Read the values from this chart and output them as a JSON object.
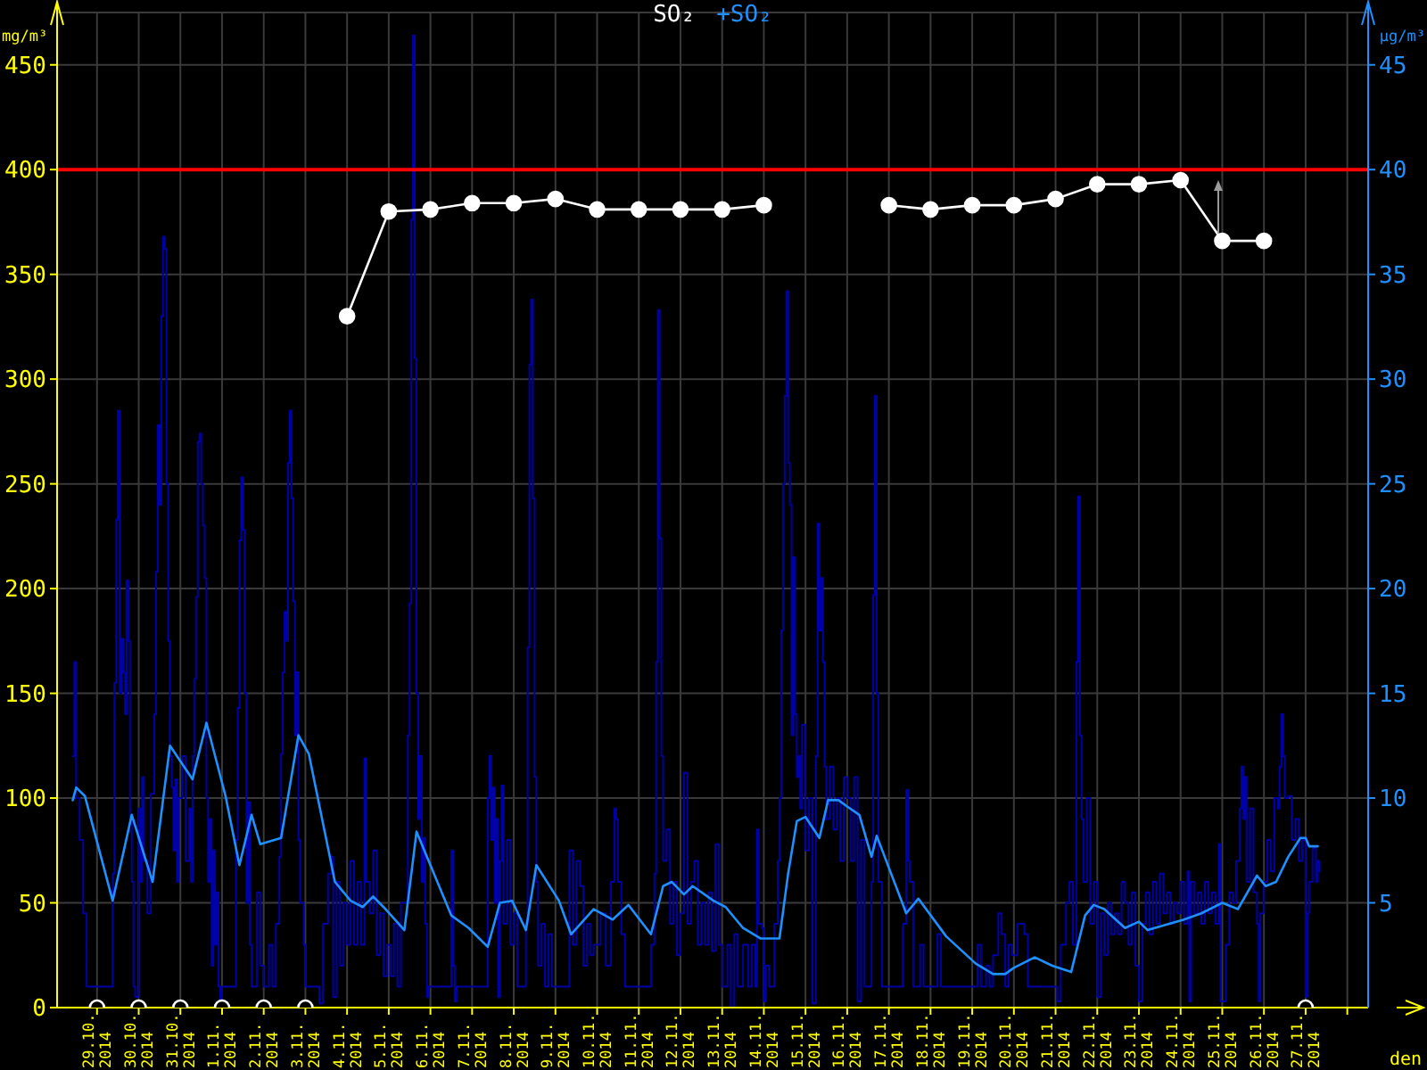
{
  "chart_data": {
    "type": "line",
    "xlabel": "den",
    "ylabel": "mg/m³",
    "y2label": "μg/m³",
    "legend": "top",
    "grid": true,
    "xlim": [
      "2014-10-28T01:00",
      "2014-11-28T12:00"
    ],
    "xticks": [
      {
        "value": "2014-10-29",
        "label": "29.10. 2014"
      },
      {
        "value": "2014-10-30",
        "label": "30.10. 2014"
      },
      {
        "value": "2014-10-31",
        "label": "31.10. 2014"
      },
      {
        "value": "2014-11-01",
        "label": "1.11. 2014"
      },
      {
        "value": "2014-11-02",
        "label": "2.11. 2014"
      },
      {
        "value": "2014-11-03",
        "label": "3.11. 2014"
      },
      {
        "value": "2014-11-04",
        "label": "4.11. 2014"
      },
      {
        "value": "2014-11-05",
        "label": "5.11. 2014"
      },
      {
        "value": "2014-11-06",
        "label": "6.11. 2014"
      },
      {
        "value": "2014-11-07",
        "label": "7.11. 2014"
      },
      {
        "value": "2014-11-08",
        "label": "8.11. 2014"
      },
      {
        "value": "2014-11-09",
        "label": "9.11. 2014"
      },
      {
        "value": "2014-11-10",
        "label": "10.11. 2014"
      },
      {
        "value": "2014-11-11",
        "label": "11.11. 2014"
      },
      {
        "value": "2014-11-12",
        "label": "12.11. 2014"
      },
      {
        "value": "2014-11-13",
        "label": "13.11. 2014"
      },
      {
        "value": "2014-11-14",
        "label": "14.11. 2014"
      },
      {
        "value": "2014-11-15",
        "label": "15.11. 2014"
      },
      {
        "value": "2014-11-16",
        "label": "16.11. 2014"
      },
      {
        "value": "2014-11-17",
        "label": "17.11. 2014"
      },
      {
        "value": "2014-11-18",
        "label": "18.11. 2014"
      },
      {
        "value": "2014-11-19",
        "label": "19.11. 2014"
      },
      {
        "value": "2014-11-20",
        "label": "20.11. 2014"
      },
      {
        "value": "2014-11-21",
        "label": "21.11. 2014"
      },
      {
        "value": "2014-11-22",
        "label": "22.11. 2014"
      },
      {
        "value": "2014-11-23",
        "label": "23.11. 2014"
      },
      {
        "value": "2014-11-24",
        "label": "24.11. 2014"
      },
      {
        "value": "2014-11-25",
        "label": "25.11. 2014"
      },
      {
        "value": "2014-11-26",
        "label": "26.11. 2014"
      },
      {
        "value": "2014-11-27",
        "label": "27.11. 2014"
      },
      {
        "value": "2014-11-28",
        "label": null
      }
    ],
    "ylim": [
      0,
      475
    ],
    "yticks": [
      0,
      50,
      100,
      150,
      200,
      250,
      300,
      350,
      400,
      450
    ],
    "y2lim": [
      0,
      47.5
    ],
    "y2ticks": [
      5,
      10,
      15,
      20,
      25,
      30,
      35,
      40,
      45
    ],
    "ref_lines": [
      {
        "axis": "y",
        "value": 400,
        "color": "#ff0000"
      }
    ],
    "series": [
      {
        "type": "step",
        "color": "#0000a8",
        "x": [
          "2014-10-28T10:00",
          "2014-10-28T11:00",
          "2014-10-28T12:00",
          "2014-10-28T14:00",
          "2014-10-28T16:00",
          "2014-10-28T18:00",
          "2014-10-29T08:00",
          "2014-10-29T09:00",
          "2014-10-29T10:00",
          "2014-10-29T11:00",
          "2014-10-29T12:00",
          "2014-10-29T13:00",
          "2014-10-29T14:00",
          "2014-10-29T15:00",
          "2014-10-29T16:00",
          "2014-10-29T17:00",
          "2014-10-29T18:00",
          "2014-10-29T19:00",
          "2014-10-29T20:00",
          "2014-10-29T21:00",
          "2014-10-29T22:00",
          "2014-10-30T00:00",
          "2014-10-30T01:00",
          "2014-10-30T02:00",
          "2014-10-30T03:00",
          "2014-10-30T05:00",
          "2014-10-30T07:00",
          "2014-10-30T09:00",
          "2014-10-30T10:00",
          "2014-10-30T11:00",
          "2014-10-30T12:00",
          "2014-10-30T13:00",
          "2014-10-30T14:00",
          "2014-10-30T15:00",
          "2014-10-30T16:00",
          "2014-10-30T17:00",
          "2014-10-30T18:00",
          "2014-10-30T19:00",
          "2014-10-30T20:00",
          "2014-10-30T21:00",
          "2014-10-30T22:00",
          "2014-10-30T23:00",
          "2014-10-31T01:00",
          "2014-10-31T03:00",
          "2014-10-31T05:00",
          "2014-10-31T06:00",
          "2014-10-31T07:00",
          "2014-10-31T08:00",
          "2014-10-31T09:00",
          "2014-10-31T10:00",
          "2014-10-31T11:00",
          "2014-10-31T12:00",
          "2014-10-31T13:00",
          "2014-10-31T14:00",
          "2014-10-31T15:00",
          "2014-10-31T16:00",
          "2014-10-31T17:00",
          "2014-10-31T18:00",
          "2014-10-31T19:00",
          "2014-10-31T20:00",
          "2014-10-31T21:00",
          "2014-10-31T22:00",
          "2014-10-31T23:00",
          "2014-11-01T00:00",
          "2014-11-01T07:00",
          "2014-11-01T08:00",
          "2014-11-01T09:00",
          "2014-11-01T10:00",
          "2014-11-01T11:00",
          "2014-11-01T12:00",
          "2014-11-01T13:00",
          "2014-11-01T14:00",
          "2014-11-01T15:00",
          "2014-11-01T16:00",
          "2014-11-01T17:00",
          "2014-11-01T20:00",
          "2014-11-01T22:00",
          "2014-11-02T00:00",
          "2014-11-02T03:00",
          "2014-11-02T05:00",
          "2014-11-02T07:00",
          "2014-11-02T09:00",
          "2014-11-02T10:00",
          "2014-11-02T11:00",
          "2014-11-02T12:00",
          "2014-11-02T13:00",
          "2014-11-02T14:00",
          "2014-11-02T15:00",
          "2014-11-02T16:00",
          "2014-11-02T17:00",
          "2014-11-02T18:00",
          "2014-11-02T19:00",
          "2014-11-02T20:00",
          "2014-11-02T21:00",
          "2014-11-02T23:00",
          "2014-11-03T00:00",
          "2014-11-03T07:00",
          "2014-11-03T08:00",
          "2014-11-03T10:00",
          "2014-11-03T13:00",
          "2014-11-03T15:00",
          "2014-11-03T16:00",
          "2014-11-03T18:00",
          "2014-11-03T20:00",
          "2014-11-03T22:00",
          "2014-11-04T00:00",
          "2014-11-04T02:00",
          "2014-11-04T04:00",
          "2014-11-04T06:00",
          "2014-11-04T08:00",
          "2014-11-04T10:00",
          "2014-11-04T11:00",
          "2014-11-04T13:00",
          "2014-11-04T15:00",
          "2014-11-04T17:00",
          "2014-11-04T19:00",
          "2014-11-04T21:00",
          "2014-11-04T23:00",
          "2014-11-05T01:00",
          "2014-11-05T03:00",
          "2014-11-05T05:00",
          "2014-11-05T07:00",
          "2014-11-05T10:00",
          "2014-11-05T11:00",
          "2014-11-05T12:00",
          "2014-11-05T13:00",
          "2014-11-05T14:00",
          "2014-11-05T15:00",
          "2014-11-05T16:00",
          "2014-11-05T17:00",
          "2014-11-05T18:00",
          "2014-11-05T19:00",
          "2014-11-05T20:00",
          "2014-11-05T21:00",
          "2014-11-05T22:00",
          "2014-11-05T23:00",
          "2014-11-06T11:00",
          "2014-11-06T12:00",
          "2014-11-06T13:00",
          "2014-11-06T14:00",
          "2014-11-06T15:00",
          "2014-11-07T08:00",
          "2014-11-07T09:00",
          "2014-11-07T10:00",
          "2014-11-07T11:00",
          "2014-11-07T12:00",
          "2014-11-07T13:00",
          "2014-11-07T14:00",
          "2014-11-07T15:00",
          "2014-11-07T16:00",
          "2014-11-07T17:00",
          "2014-11-07T18:00",
          "2014-11-07T20:00",
          "2014-11-07T22:00",
          "2014-11-08T00:00",
          "2014-11-08T02:00",
          "2014-11-08T05:00",
          "2014-11-08T07:00",
          "2014-11-08T08:00",
          "2014-11-08T09:00",
          "2014-11-08T10:00",
          "2014-11-08T11:00",
          "2014-11-08T12:00",
          "2014-11-08T13:00",
          "2014-11-08T14:00",
          "2014-11-08T16:00",
          "2014-11-08T18:00",
          "2014-11-08T20:00",
          "2014-11-08T22:00",
          "2014-11-09T01:00",
          "2014-11-09T06:00",
          "2014-11-09T08:00",
          "2014-11-09T10:00",
          "2014-11-09T12:00",
          "2014-11-09T14:00",
          "2014-11-09T16:00",
          "2014-11-09T18:00",
          "2014-11-09T20:00",
          "2014-11-09T22:00",
          "2014-11-10T02:00",
          "2014-11-10T05:00",
          "2014-11-10T08:00",
          "2014-11-10T10:00",
          "2014-11-10T11:00",
          "2014-11-10T12:00",
          "2014-11-10T14:00",
          "2014-11-10T16:00",
          "2014-11-11T06:00",
          "2014-11-11T07:00",
          "2014-11-11T09:00",
          "2014-11-11T10:00",
          "2014-11-11T11:00",
          "2014-11-11T12:00",
          "2014-11-11T13:00",
          "2014-11-11T14:00",
          "2014-11-11T16:00",
          "2014-11-11T18:00",
          "2014-11-11T20:00",
          "2014-11-11T22:00",
          "2014-11-12T00:00",
          "2014-11-12T02:00",
          "2014-11-12T04:00",
          "2014-11-12T06:00",
          "2014-11-12T08:00",
          "2014-11-12T10:00",
          "2014-11-12T12:00",
          "2014-11-12T14:00",
          "2014-11-12T16:00",
          "2014-11-12T18:00",
          "2014-11-12T20:00",
          "2014-11-12T22:00",
          "2014-11-13T00:00",
          "2014-11-13T03:00",
          "2014-11-13T05:00",
          "2014-11-13T07:00",
          "2014-11-13T09:00",
          "2014-11-13T12:00",
          "2014-11-13T15:00",
          "2014-11-13T17:00",
          "2014-11-13T19:00",
          "2014-11-13T20:00",
          "2014-11-13T21:00",
          "2014-11-13T23:00",
          "2014-11-14T00:00",
          "2014-11-14T01:00",
          "2014-11-14T03:00",
          "2014-11-14T06:00",
          "2014-11-14T08:00",
          "2014-11-14T09:00",
          "2014-11-14T10:00",
          "2014-11-14T11:00",
          "2014-11-14T12:00",
          "2014-11-14T13:00",
          "2014-11-14T14:00",
          "2014-11-14T15:00",
          "2014-11-14T16:00",
          "2014-11-14T17:00",
          "2014-11-14T18:00",
          "2014-11-14T19:00",
          "2014-11-14T20:00",
          "2014-11-14T21:00",
          "2014-11-14T22:00",
          "2014-11-15T00:00",
          "2014-11-15T02:00",
          "2014-11-15T04:00",
          "2014-11-15T06:00",
          "2014-11-15T07:00",
          "2014-11-15T08:00",
          "2014-11-15T09:00",
          "2014-11-15T10:00",
          "2014-11-15T11:00",
          "2014-11-15T12:00",
          "2014-11-15T14:00",
          "2014-11-15T16:00",
          "2014-11-15T18:00",
          "2014-11-15T20:00",
          "2014-11-15T22:00",
          "2014-11-16T00:00",
          "2014-11-16T02:00",
          "2014-11-16T04:00",
          "2014-11-16T06:00",
          "2014-11-16T08:00",
          "2014-11-16T10:00",
          "2014-11-16T12:00",
          "2014-11-16T14:00",
          "2014-11-16T15:00",
          "2014-11-16T16:00",
          "2014-11-16T17:00",
          "2014-11-16T18:00",
          "2014-11-16T20:00",
          "2014-11-17T06:00",
          "2014-11-17T08:00",
          "2014-11-17T10:00",
          "2014-11-17T11:00",
          "2014-11-17T12:00",
          "2014-11-17T14:00",
          "2014-11-17T18:00",
          "2014-11-17T20:00",
          "2014-11-18T02:00",
          "2014-11-18T04:00",
          "2014-11-18T06:00",
          "2014-11-19T00:00",
          "2014-11-19T03:00",
          "2014-11-19T05:00",
          "2014-11-19T08:00",
          "2014-11-19T10:00",
          "2014-11-19T12:00",
          "2014-11-19T15:00",
          "2014-11-19T17:00",
          "2014-11-19T19:00",
          "2014-11-19T21:00",
          "2014-11-19T23:00",
          "2014-11-20T02:00",
          "2014-11-20T06:00",
          "2014-11-20T08:00",
          "2014-11-20T23:00",
          "2014-11-21T01:00",
          "2014-11-21T03:00",
          "2014-11-21T06:00",
          "2014-11-21T08:00",
          "2014-11-21T10:00",
          "2014-11-21T12:00",
          "2014-11-21T13:00",
          "2014-11-21T14:00",
          "2014-11-21T15:00",
          "2014-11-21T16:00",
          "2014-11-21T18:00",
          "2014-11-21T20:00",
          "2014-11-21T22:00",
          "2014-11-22T00:00",
          "2014-11-22T02:00",
          "2014-11-22T04:00",
          "2014-11-22T06:00",
          "2014-11-22T08:00",
          "2014-11-22T10:00",
          "2014-11-22T12:00",
          "2014-11-22T14:00",
          "2014-11-22T16:00",
          "2014-11-22T18:00",
          "2014-11-22T20:00",
          "2014-11-22T22:00",
          "2014-11-23T00:00",
          "2014-11-23T02:00",
          "2014-11-23T04:00",
          "2014-11-23T06:00",
          "2014-11-23T08:00",
          "2014-11-23T10:00",
          "2014-11-23T12:00",
          "2014-11-23T14:00",
          "2014-11-23T16:00",
          "2014-11-23T18:00",
          "2014-11-23T20:00",
          "2014-11-23T22:00",
          "2014-11-24T00:00",
          "2014-11-24T02:00",
          "2014-11-24T04:00",
          "2014-11-24T05:00",
          "2014-11-24T06:00",
          "2014-11-24T08:00",
          "2014-11-24T10:00",
          "2014-11-24T12:00",
          "2014-11-24T14:00",
          "2014-11-24T16:00",
          "2014-11-24T18:00",
          "2014-11-24T20:00",
          "2014-11-24T22:00",
          "2014-11-24T23:00",
          "2014-11-25T02:00",
          "2014-11-25T04:00",
          "2014-11-25T06:00",
          "2014-11-25T08:00",
          "2014-11-25T10:00",
          "2014-11-25T11:00",
          "2014-11-25T12:00",
          "2014-11-25T13:00",
          "2014-11-25T14:00",
          "2014-11-25T16:00",
          "2014-11-25T18:00",
          "2014-11-25T20:00",
          "2014-11-25T21:00",
          "2014-11-25T22:00",
          "2014-11-26T00:00",
          "2014-11-26T02:00",
          "2014-11-26T04:00",
          "2014-11-26T06:00",
          "2014-11-26T08:00",
          "2014-11-26T09:00",
          "2014-11-26T10:00",
          "2014-11-26T11:00",
          "2014-11-26T12:00",
          "2014-11-26T14:00",
          "2014-11-26T16:00",
          "2014-11-26T18:00",
          "2014-11-26T20:00",
          "2014-11-26T22:00",
          "2014-11-27T00:00",
          "2014-11-27T01:00",
          "2014-11-27T02:00",
          "2014-11-27T04:00",
          "2014-11-27T06:00",
          "2014-11-27T07:00",
          "2014-11-27T08:00"
        ],
        "values": [
          120,
          165,
          100,
          80,
          45,
          10,
          10,
          64,
          155,
          233,
          285,
          150,
          176,
          160,
          140,
          204,
          175,
          90,
          60,
          10,
          5,
          95,
          60,
          110,
          70,
          45,
          102,
          140,
          208,
          278,
          240,
          330,
          368,
          362,
          250,
          175,
          120,
          105,
          75,
          109,
          60,
          100,
          120,
          70,
          95,
          60,
          120,
          157,
          196,
          270,
          274,
          250,
          230,
          205,
          100,
          60,
          90,
          20,
          75,
          30,
          55,
          10,
          2,
          10,
          10,
          80,
          143,
          223,
          253,
          228,
          150,
          50,
          98,
          30,
          10,
          55,
          20,
          10,
          30,
          10,
          40,
          72,
          121,
          160,
          189,
          175,
          260,
          285,
          243,
          194,
          130,
          160,
          80,
          50,
          30,
          10,
          10,
          2,
          40,
          64,
          72,
          5,
          60,
          20,
          50,
          30,
          70,
          30,
          60,
          30,
          119,
          60,
          45,
          75,
          25,
          45,
          15,
          30,
          15,
          40,
          10,
          50,
          50,
          130,
          193,
          376,
          464,
          310,
          150,
          90,
          120,
          60,
          81,
          40,
          5,
          10,
          10,
          75,
          20,
          3,
          10,
          10,
          100,
          120,
          80,
          105,
          50,
          90,
          5,
          70,
          106,
          40,
          80,
          30,
          45,
          10,
          10,
          40,
          172,
          307,
          338,
          243,
          110,
          60,
          20,
          40,
          10,
          35,
          10,
          10,
          10,
          75,
          30,
          70,
          58,
          20,
          40,
          25,
          30,
          45,
          20,
          60,
          95,
          90,
          60,
          35,
          10,
          10,
          30,
          64,
          165,
          333,
          224,
          120,
          70,
          85,
          40,
          60,
          25,
          45,
          112,
          40,
          60,
          70,
          30,
          50,
          30,
          55,
          27,
          78,
          30,
          10,
          30,
          0,
          35,
          10,
          30,
          10,
          30,
          10,
          85,
          40,
          38,
          3,
          20,
          10,
          40,
          70,
          100,
          180,
          250,
          292,
          342,
          260,
          240,
          130,
          215,
          140,
          110,
          120,
          95,
          135,
          75,
          100,
          2,
          120,
          231,
          180,
          205,
          165,
          115,
          90,
          115,
          85,
          100,
          70,
          110,
          100,
          70,
          110,
          3,
          80,
          10,
          10,
          60,
          197,
          292,
          150,
          60,
          10,
          10,
          40,
          104,
          70,
          60,
          10,
          30,
          10,
          10,
          35,
          10,
          10,
          30,
          10,
          20,
          10,
          25,
          45,
          35,
          10,
          30,
          25,
          40,
          35,
          10,
          10,
          3,
          30,
          50,
          60,
          30,
          165,
          244,
          130,
          90,
          60,
          100,
          40,
          60,
          5,
          45,
          25,
          50,
          35,
          45,
          35,
          60,
          50,
          30,
          55,
          20,
          3,
          40,
          55,
          35,
          60,
          40,
          64,
          45,
          55,
          40,
          50,
          45,
          60,
          40,
          65,
          3,
          60,
          45,
          55,
          40,
          60,
          45,
          55,
          40,
          78,
          3,
          30,
          55,
          50,
          70,
          95,
          115,
          90,
          110,
          60,
          95,
          55,
          40,
          3,
          45,
          60,
          80,
          65,
          100,
          95,
          115,
          140,
          120,
          100,
          101,
          80,
          90,
          70,
          80,
          5,
          45,
          60,
          76,
          60,
          70,
          65
        ]
      },
      {
        "name": "SO₂",
        "color": "#ffffff",
        "marker": "circle",
        "x": [
          "2014-11-04",
          "2014-11-05",
          "2014-11-06",
          "2014-11-07",
          "2014-11-08",
          "2014-11-09",
          "2014-11-10",
          "2014-11-11",
          "2014-11-12",
          "2014-11-13",
          "2014-11-14",
          "2014-11-15",
          "2014-11-16",
          "2014-11-17",
          "2014-11-18",
          "2014-11-19",
          "2014-11-20",
          "2014-11-21",
          "2014-11-22",
          "2014-11-23",
          "2014-11-24",
          "2014-11-25",
          "2014-11-26"
        ],
        "values": [
          330,
          380,
          381,
          384,
          384,
          386,
          381,
          381,
          381,
          381,
          383,
          null,
          null,
          383,
          381,
          383,
          383,
          386,
          393,
          393,
          395,
          366,
          366
        ]
      },
      {
        "name": "+SO₂",
        "axis": "y2",
        "color": "#1e90ff",
        "x": [
          "2014-10-28T10:00",
          "2014-10-28T12:00",
          "2014-10-28T17:00",
          "2014-10-29T09:00",
          "2014-10-29T20:00",
          "2014-10-30T08:00",
          "2014-10-30T18:00",
          "2014-10-31T07:00",
          "2014-10-31T15:00",
          "2014-11-01T02:00",
          "2014-11-01T10:00",
          "2014-11-01T17:00",
          "2014-11-01T22:00",
          "2014-11-02T10:00",
          "2014-11-02T20:00",
          "2014-11-03T02:00",
          "2014-11-03T17:00",
          "2014-11-04T02:00",
          "2014-11-04T09:00",
          "2014-11-04T15:00",
          "2014-11-04T21:00",
          "2014-11-05T09:00",
          "2014-11-05T16:00",
          "2014-11-06T12:00",
          "2014-11-06T22:00",
          "2014-11-07T09:00",
          "2014-11-07T16:00",
          "2014-11-07T23:00",
          "2014-11-08T07:00",
          "2014-11-08T13:00",
          "2014-11-09T02:00",
          "2014-11-09T09:00",
          "2014-11-09T22:00",
          "2014-11-10T09:00",
          "2014-11-10T18:00",
          "2014-11-11T07:00",
          "2014-11-11T14:00",
          "2014-11-11T19:00",
          "2014-11-12T02:00",
          "2014-11-12T07:00",
          "2014-11-12T19:00",
          "2014-11-13T02:00",
          "2014-11-13T12:00",
          "2014-11-13T22:00",
          "2014-11-14T09:00",
          "2014-11-14T14:00",
          "2014-11-14T19:00",
          "2014-11-15T00:00",
          "2014-11-15T08:00",
          "2014-11-15T13:00",
          "2014-11-15T19:00",
          "2014-11-16T00:00",
          "2014-11-16T07:00",
          "2014-11-16T14:00",
          "2014-11-16T17:00",
          "2014-11-17T10:00",
          "2014-11-17T17:00",
          "2014-11-18T09:00",
          "2014-11-19T02:00",
          "2014-11-19T12:00",
          "2014-11-19T19:00",
          "2014-11-20T00:00",
          "2014-11-20T12:00",
          "2014-11-20T22:00",
          "2014-11-21T09:00",
          "2014-11-21T17:00",
          "2014-11-21T22:00",
          "2014-11-22T04:00",
          "2014-11-22T16:00",
          "2014-11-23T00:00",
          "2014-11-23T05:00",
          "2014-11-24T02:00",
          "2014-11-24T12:00",
          "2014-11-25T00:00",
          "2014-11-25T09:00",
          "2014-11-25T20:00",
          "2014-11-26T01:00",
          "2014-11-26T07:00",
          "2014-11-26T14:00",
          "2014-11-26T21:00",
          "2014-11-27T00:00",
          "2014-11-27T02:00",
          "2014-11-27T07:00"
        ],
        "values": [
          9.9,
          10.5,
          10.1,
          5.1,
          9.2,
          6.0,
          12.5,
          10.9,
          13.6,
          10.1,
          6.8,
          9.2,
          7.8,
          8.1,
          13.0,
          12.1,
          6.0,
          5.1,
          4.8,
          5.3,
          4.8,
          3.7,
          8.4,
          4.4,
          3.8,
          2.9,
          5.0,
          5.1,
          3.7,
          6.8,
          5.1,
          3.5,
          4.7,
          4.2,
          4.9,
          3.5,
          5.8,
          6.0,
          5.4,
          5.8,
          5.1,
          4.8,
          3.8,
          3.3,
          3.3,
          6.4,
          8.9,
          9.1,
          8.1,
          9.9,
          9.9,
          9.6,
          9.2,
          7.2,
          8.2,
          4.5,
          5.2,
          3.4,
          2.1,
          1.6,
          1.6,
          1.9,
          2.4,
          2.0,
          1.7,
          4.4,
          4.9,
          4.7,
          3.8,
          4.1,
          3.7,
          4.2,
          4.5,
          5.0,
          4.7,
          6.3,
          5.8,
          6.0,
          7.2,
          8.1,
          8.1,
          7.7,
          7.7
        ]
      },
      {
        "type": "scatter",
        "color": "#ffffff",
        "marker": "circle",
        "x": [
          "2014-10-29",
          "2014-10-30",
          "2014-10-31",
          "2014-11-01",
          "2014-11-02",
          "2014-11-03",
          "2014-11-27"
        ],
        "values": [
          0,
          0,
          0,
          0,
          0,
          0,
          0
        ]
      }
    ]
  }
}
